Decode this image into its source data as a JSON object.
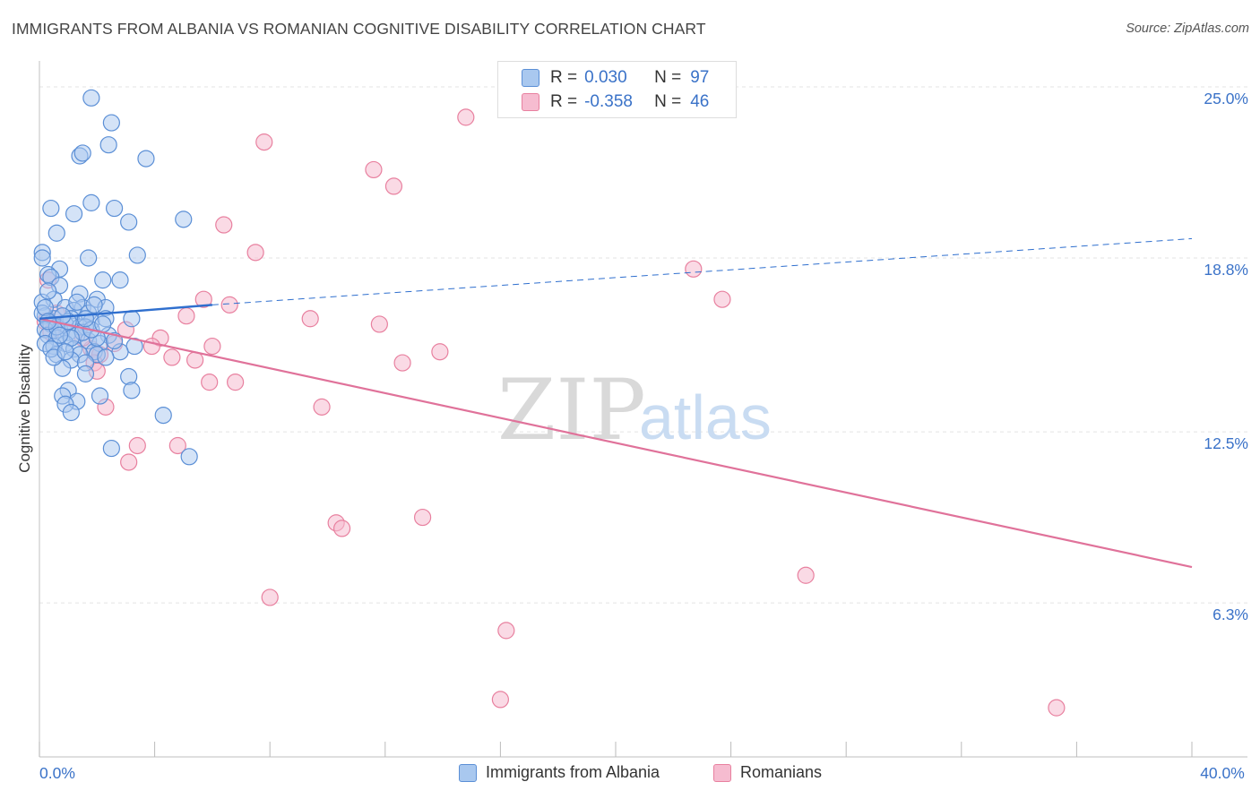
{
  "title": "IMMIGRANTS FROM ALBANIA VS ROMANIAN COGNITIVE DISABILITY CORRELATION CHART",
  "source": "Source: ZipAtlas.com",
  "legend": {
    "albania": {
      "r_label": "R =",
      "r_value": "0.030",
      "n_label": "N =",
      "n_value": "97"
    },
    "romanians": {
      "r_label": "R =",
      "r_value": "-0.358",
      "n_label": "N =",
      "n_value": "46"
    }
  },
  "watermark": {
    "zip": "ZIP",
    "atlas": "atlas"
  },
  "colors": {
    "albania_fill": "#a9c8ef",
    "albania_stroke": "#5b8fd6",
    "albania_line": "#2f6fce",
    "romanians_fill": "#f6bcd0",
    "romanians_stroke": "#e8809f",
    "romanians_line": "#e0729a",
    "tick_label": "#3a72c8",
    "grid": "#e3e3e3"
  },
  "chart_data": {
    "type": "scatter",
    "xlabel": "",
    "ylabel": "Cognitive Disability",
    "xlim": [
      0,
      40
    ],
    "ylim": [
      0,
      26
    ],
    "x_tick_labels": [
      {
        "value": 0,
        "label": "0.0%"
      },
      {
        "value": 40,
        "label": "40.0%"
      }
    ],
    "y_ticks": [
      {
        "value": 6.3,
        "label": "6.3%"
      },
      {
        "value": 12.5,
        "label": "12.5%"
      },
      {
        "value": 18.8,
        "label": "18.8%"
      },
      {
        "value": 25.0,
        "label": "25.0%"
      }
    ],
    "grid": "horizontal dashed",
    "legend_placement": "bottom-center",
    "series": [
      {
        "name": "Immigrants from Albania",
        "trend": {
          "x": [
            0,
            6.0
          ],
          "y": [
            16.6,
            17.1
          ],
          "extended_x": [
            6.0,
            40.0
          ],
          "extended_y": [
            17.1,
            19.5
          ]
        },
        "points": [
          [
            1.8,
            24.6
          ],
          [
            2.5,
            23.7
          ],
          [
            1.4,
            22.5
          ],
          [
            1.5,
            22.6
          ],
          [
            2.4,
            22.9
          ],
          [
            3.7,
            22.4
          ],
          [
            0.4,
            20.6
          ],
          [
            1.8,
            20.8
          ],
          [
            2.6,
            20.6
          ],
          [
            1.2,
            20.4
          ],
          [
            3.1,
            20.1
          ],
          [
            5.0,
            20.2
          ],
          [
            0.6,
            19.7
          ],
          [
            0.1,
            19.0
          ],
          [
            0.1,
            18.8
          ],
          [
            1.7,
            18.8
          ],
          [
            3.4,
            18.9
          ],
          [
            0.7,
            18.4
          ],
          [
            0.3,
            18.2
          ],
          [
            0.4,
            18.1
          ],
          [
            2.2,
            18.0
          ],
          [
            2.8,
            18.0
          ],
          [
            0.7,
            17.8
          ],
          [
            1.4,
            17.5
          ],
          [
            0.5,
            17.3
          ],
          [
            0.1,
            17.2
          ],
          [
            2.0,
            17.3
          ],
          [
            0.9,
            17.0
          ],
          [
            1.5,
            17.0
          ],
          [
            2.3,
            17.0
          ],
          [
            1.2,
            16.9
          ],
          [
            1.7,
            16.8
          ],
          [
            0.2,
            16.7
          ],
          [
            0.5,
            16.6
          ],
          [
            1.1,
            16.6
          ],
          [
            1.8,
            16.5
          ],
          [
            2.3,
            16.6
          ],
          [
            3.2,
            16.6
          ],
          [
            0.4,
            16.4
          ],
          [
            0.9,
            16.4
          ],
          [
            1.4,
            16.3
          ],
          [
            1.6,
            16.3
          ],
          [
            0.2,
            16.2
          ],
          [
            0.7,
            16.2
          ],
          [
            1.0,
            16.1
          ],
          [
            1.3,
            16.0
          ],
          [
            2.4,
            16.0
          ],
          [
            0.3,
            16.0
          ],
          [
            0.6,
            15.9
          ],
          [
            1.7,
            15.8
          ],
          [
            0.2,
            15.7
          ],
          [
            0.9,
            15.7
          ],
          [
            2.1,
            15.7
          ],
          [
            3.3,
            15.6
          ],
          [
            0.5,
            15.6
          ],
          [
            1.2,
            15.5
          ],
          [
            1.9,
            15.4
          ],
          [
            2.8,
            15.4
          ],
          [
            0.6,
            15.3
          ],
          [
            1.4,
            15.3
          ],
          [
            2.0,
            15.3
          ],
          [
            2.3,
            15.2
          ],
          [
            1.1,
            15.1
          ],
          [
            1.6,
            15.0
          ],
          [
            0.8,
            14.8
          ],
          [
            1.6,
            14.6
          ],
          [
            3.1,
            14.5
          ],
          [
            1.0,
            14.0
          ],
          [
            0.8,
            13.8
          ],
          [
            2.1,
            13.8
          ],
          [
            3.2,
            14.0
          ],
          [
            1.3,
            13.6
          ],
          [
            0.9,
            13.5
          ],
          [
            1.1,
            13.2
          ],
          [
            4.3,
            13.1
          ],
          [
            2.5,
            11.9
          ],
          [
            5.2,
            11.6
          ],
          [
            0.1,
            16.8
          ],
          [
            0.3,
            17.6
          ],
          [
            0.6,
            16.3
          ],
          [
            1.5,
            16.1
          ],
          [
            2.0,
            15.9
          ],
          [
            0.4,
            15.5
          ],
          [
            1.0,
            16.5
          ],
          [
            1.8,
            16.2
          ],
          [
            2.6,
            15.8
          ],
          [
            0.2,
            17.0
          ],
          [
            0.8,
            16.7
          ],
          [
            1.3,
            17.2
          ],
          [
            0.5,
            15.2
          ],
          [
            1.1,
            15.9
          ],
          [
            0.7,
            16.0
          ],
          [
            1.9,
            17.1
          ],
          [
            2.2,
            16.4
          ],
          [
            0.3,
            16.5
          ],
          [
            1.6,
            16.6
          ],
          [
            0.9,
            15.4
          ]
        ]
      },
      {
        "name": "Romanians",
        "trend": {
          "x": [
            0,
            40.0
          ],
          "y": [
            16.6,
            7.6
          ]
        },
        "points": [
          [
            14.8,
            23.9
          ],
          [
            7.8,
            23.0
          ],
          [
            11.6,
            22.0
          ],
          [
            12.3,
            21.4
          ],
          [
            6.4,
            20.0
          ],
          [
            7.5,
            19.0
          ],
          [
            22.7,
            18.4
          ],
          [
            0.3,
            18.0
          ],
          [
            5.7,
            17.3
          ],
          [
            6.6,
            17.1
          ],
          [
            23.7,
            17.3
          ],
          [
            5.1,
            16.7
          ],
          [
            9.4,
            16.6
          ],
          [
            11.8,
            16.4
          ],
          [
            0.2,
            16.5
          ],
          [
            3.0,
            16.2
          ],
          [
            4.2,
            15.9
          ],
          [
            6.0,
            15.6
          ],
          [
            3.9,
            15.6
          ],
          [
            13.9,
            15.4
          ],
          [
            1.8,
            15.5
          ],
          [
            2.1,
            15.3
          ],
          [
            4.6,
            15.2
          ],
          [
            5.4,
            15.1
          ],
          [
            12.6,
            15.0
          ],
          [
            1.9,
            15.0
          ],
          [
            2.0,
            14.7
          ],
          [
            5.9,
            14.3
          ],
          [
            6.8,
            14.3
          ],
          [
            2.3,
            13.4
          ],
          [
            9.8,
            13.4
          ],
          [
            3.4,
            12.0
          ],
          [
            4.8,
            12.0
          ],
          [
            3.1,
            11.4
          ],
          [
            0.4,
            16.1
          ],
          [
            1.5,
            15.9
          ],
          [
            2.6,
            15.7
          ],
          [
            13.3,
            9.4
          ],
          [
            10.3,
            9.2
          ],
          [
            10.5,
            9.0
          ],
          [
            26.6,
            7.3
          ],
          [
            8.0,
            6.5
          ],
          [
            16.2,
            5.3
          ],
          [
            16.0,
            2.8
          ],
          [
            35.3,
            2.5
          ],
          [
            0.6,
            16.8
          ]
        ]
      }
    ]
  },
  "bottom_legend": {
    "albania": "Immigrants from Albania",
    "romanians": "Romanians"
  }
}
